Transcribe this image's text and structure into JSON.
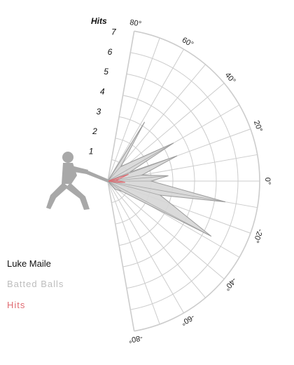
{
  "chart_data": {
    "type": "radial-area",
    "player": "Luke Maile",
    "radial_axis": {
      "title": "Hits",
      "ticks": [
        "1",
        "2",
        "3",
        "4",
        "5",
        "6",
        "7"
      ],
      "max": 7
    },
    "angle_axis": {
      "range": [
        -80,
        80
      ],
      "tick_values": [
        80,
        60,
        40,
        20,
        0,
        -20,
        -40,
        -60,
        -80
      ],
      "tick_labels": [
        "80°",
        "60°",
        "40°",
        "20°",
        "0°",
        "-20°",
        "-40°",
        "-60°",
        "-80°"
      ]
    },
    "grid": true,
    "series": [
      {
        "name": "Batted Balls",
        "color": "#bdbdbd",
        "points": [
          {
            "angle": 58,
            "value": 3.2
          },
          {
            "angle": 48,
            "value": 0.9
          },
          {
            "angle": 30,
            "value": 3.5
          },
          {
            "angle": 22,
            "value": 1.1
          },
          {
            "angle": 20,
            "value": 3.4
          },
          {
            "angle": 10,
            "value": 1.6
          },
          {
            "angle": 5,
            "value": 2.8
          },
          {
            "angle": 0,
            "value": 2.0
          },
          {
            "angle": -10,
            "value": 5.5
          },
          {
            "angle": -15,
            "value": 2.5
          },
          {
            "angle": -28,
            "value": 5.4
          },
          {
            "angle": -36,
            "value": 0.8
          },
          {
            "angle": -48,
            "value": 0.5
          }
        ]
      },
      {
        "name": "Hits",
        "color": "#e06b72",
        "points": [
          {
            "angle": 18,
            "value": 1.0
          },
          {
            "angle": 10,
            "value": 0.5
          },
          {
            "angle": 12,
            "value": 0.5
          },
          {
            "angle": 3,
            "value": 0.4
          },
          {
            "angle": -4,
            "value": 0.8
          },
          {
            "angle": -8,
            "value": 0.4
          }
        ]
      }
    ]
  },
  "legend": {
    "title": "Luke Maile",
    "items": [
      "Batted Balls",
      "Hits"
    ]
  },
  "colors": {
    "grid": "#cccccc",
    "batted_fill": "#d6d6d6",
    "batted_stroke": "#9a9a9a",
    "hits": "#e06b72",
    "batted_legend": "#bdbdbd",
    "player_icon": "#a8a8a8"
  }
}
